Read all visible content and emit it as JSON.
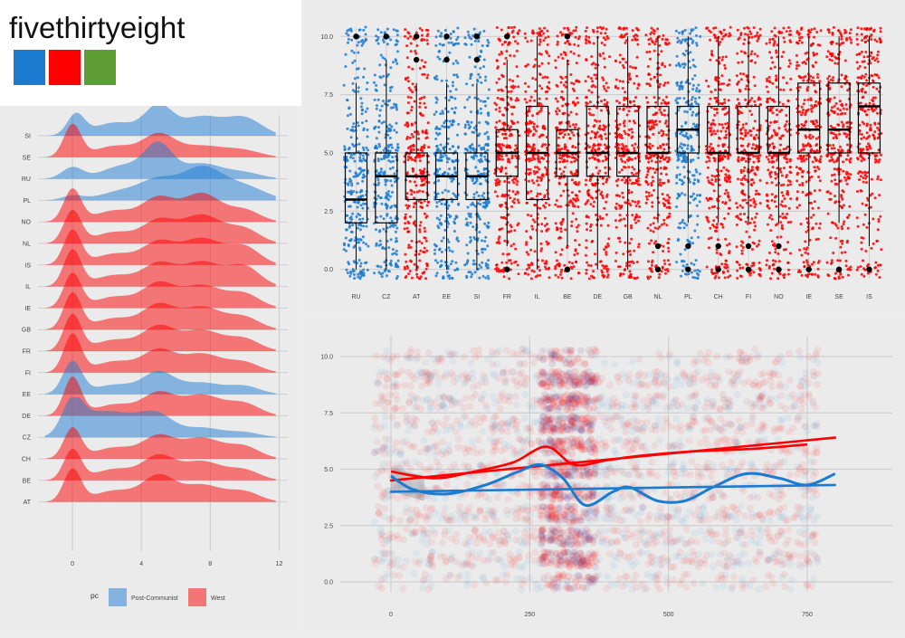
{
  "header": {
    "title": "fivethirtyeight",
    "palette": [
      "#1b7bd1",
      "#fe0000",
      "#5f9e34"
    ]
  },
  "colors": {
    "post": "#1b7bd1",
    "west": "#fe0000"
  },
  "chart_data": [
    {
      "type": "area",
      "subtype": "ridgeline-density",
      "categories": [
        "SI",
        "SE",
        "RU",
        "PL",
        "NO",
        "NL",
        "IS",
        "IL",
        "IE",
        "GB",
        "FR",
        "FI",
        "EE",
        "DE",
        "CZ",
        "CH",
        "BE",
        "AT"
      ],
      "group": {
        "SI": "Post-Communist",
        "SE": "West",
        "RU": "Post-Communist",
        "PL": "Post-Communist",
        "NO": "West",
        "NL": "West",
        "IS": "West",
        "IL": "West",
        "IE": "West",
        "GB": "West",
        "FR": "West",
        "FI": "West",
        "EE": "Post-Communist",
        "DE": "West",
        "CZ": "Post-Communist",
        "CH": "West",
        "BE": "West",
        "AT": "West"
      },
      "x_ticks": [
        0,
        4,
        8,
        12
      ],
      "xlim": [
        -2,
        12.5
      ],
      "legend": {
        "title": "pc",
        "entries": [
          "Post-Communist",
          "West"
        ],
        "position": "bottom"
      },
      "grid": true
    },
    {
      "type": "scatter",
      "subtype": "jitter-boxplot",
      "categories": [
        "RU",
        "CZ",
        "AT",
        "EE",
        "SI",
        "FR",
        "IL",
        "BE",
        "DE",
        "GB",
        "NL",
        "PL",
        "CH",
        "FI",
        "NO",
        "IE",
        "SE",
        "IS"
      ],
      "group": [
        "Post-Communist",
        "Post-Communist",
        "West",
        "Post-Communist",
        "Post-Communist",
        "West",
        "West",
        "West",
        "West",
        "West",
        "West",
        "Post-Communist",
        "West",
        "West",
        "West",
        "West",
        "West",
        "West"
      ],
      "box": [
        {
          "q1": 2,
          "median": 3,
          "q3": 5,
          "lo": 0,
          "hi": 8,
          "outliers": [
            10
          ]
        },
        {
          "q1": 2,
          "median": 4,
          "q3": 5,
          "lo": 0,
          "hi": 9,
          "outliers": [
            10
          ]
        },
        {
          "q1": 3,
          "median": 4,
          "q3": 5,
          "lo": 0,
          "hi": 8,
          "outliers": [
            9,
            10
          ]
        },
        {
          "q1": 3,
          "median": 4,
          "q3": 5,
          "lo": 0,
          "hi": 8,
          "outliers": [
            9,
            10
          ]
        },
        {
          "q1": 3,
          "median": 4,
          "q3": 5,
          "lo": 0,
          "hi": 8,
          "outliers": [
            9,
            10
          ]
        },
        {
          "q1": 4,
          "median": 5,
          "q3": 6,
          "lo": 1,
          "hi": 9,
          "outliers": [
            0,
            10
          ]
        },
        {
          "q1": 3,
          "median": 5,
          "q3": 7,
          "lo": 0,
          "hi": 10,
          "outliers": []
        },
        {
          "q1": 4,
          "median": 5,
          "q3": 6,
          "lo": 1,
          "hi": 9,
          "outliers": [
            0,
            10
          ]
        },
        {
          "q1": 4,
          "median": 5,
          "q3": 7,
          "lo": 0,
          "hi": 10,
          "outliers": []
        },
        {
          "q1": 4,
          "median": 5,
          "q3": 7,
          "lo": 0,
          "hi": 10,
          "outliers": []
        },
        {
          "q1": 5,
          "median": 5,
          "q3": 7,
          "lo": 2,
          "hi": 10,
          "outliers": [
            0,
            1
          ]
        },
        {
          "q1": 5,
          "median": 6,
          "q3": 7,
          "lo": 2,
          "hi": 10,
          "outliers": [
            0,
            1
          ]
        },
        {
          "q1": 5,
          "median": 5,
          "q3": 7,
          "lo": 2,
          "hi": 10,
          "outliers": [
            0,
            1
          ]
        },
        {
          "q1": 5,
          "median": 5,
          "q3": 7,
          "lo": 2,
          "hi": 10,
          "outliers": [
            0,
            1
          ]
        },
        {
          "q1": 5,
          "median": 5,
          "q3": 7,
          "lo": 2,
          "hi": 10,
          "outliers": [
            0,
            1
          ]
        },
        {
          "q1": 5,
          "median": 6,
          "q3": 8,
          "lo": 1,
          "hi": 10,
          "outliers": [
            0
          ]
        },
        {
          "q1": 5,
          "median": 6,
          "q3": 8,
          "lo": 2,
          "hi": 10,
          "outliers": [
            0
          ]
        },
        {
          "q1": 5,
          "median": 7,
          "q3": 8,
          "lo": 1,
          "hi": 10,
          "outliers": [
            0
          ]
        }
      ],
      "y_ticks": [
        "0.0",
        "2.5",
        "5.0",
        "7.5",
        "10.0"
      ],
      "ylim": [
        -0.4,
        10.4
      ],
      "grid": true
    },
    {
      "type": "scatter",
      "subtype": "scatter-with-smoothers",
      "x_ticks": [
        0,
        250,
        500,
        750
      ],
      "y_ticks": [
        "0.0",
        "2.5",
        "5.0",
        "7.5",
        "10.0"
      ],
      "xlim": [
        -50,
        800
      ],
      "ylim": [
        -0.5,
        10.6
      ],
      "series": [
        {
          "name": "West",
          "linear": [
            [
              0,
              4.5
            ],
            [
              800,
              6.4
            ]
          ],
          "smooth": [
            [
              0,
              4.9
            ],
            [
              80,
              4.6
            ],
            [
              150,
              4.9
            ],
            [
              220,
              5.3
            ],
            [
              280,
              6.0
            ],
            [
              330,
              5.2
            ],
            [
              390,
              5.4
            ],
            [
              450,
              5.6
            ],
            [
              550,
              5.8
            ],
            [
              650,
              5.9
            ],
            [
              750,
              6.1
            ]
          ]
        },
        {
          "name": "Post-Communist",
          "linear": [
            [
              0,
              4.0
            ],
            [
              800,
              4.3
            ]
          ],
          "smooth": [
            [
              0,
              4.7
            ],
            [
              40,
              4.1
            ],
            [
              100,
              3.9
            ],
            [
              170,
              4.3
            ],
            [
              230,
              4.9
            ],
            [
              270,
              5.2
            ],
            [
              310,
              4.6
            ],
            [
              350,
              3.4
            ],
            [
              400,
              4.0
            ],
            [
              430,
              4.2
            ],
            [
              480,
              3.6
            ],
            [
              530,
              3.6
            ],
            [
              580,
              4.2
            ],
            [
              640,
              4.8
            ],
            [
              700,
              4.6
            ],
            [
              750,
              4.3
            ],
            [
              800,
              4.8
            ]
          ]
        }
      ]
    }
  ]
}
